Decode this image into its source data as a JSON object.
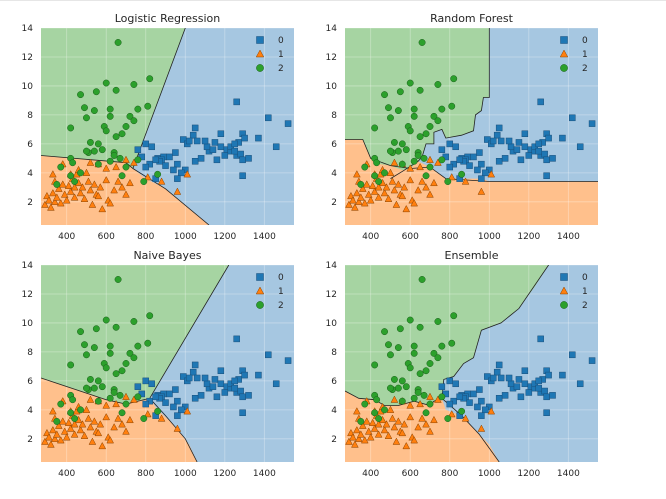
{
  "colors": {
    "class0": "#1f77b4",
    "class1": "#ff7f0e",
    "class2": "#2ca02c",
    "region0": "#a6c7e1",
    "region1": "#ffc08c",
    "region2": "#a6d4a2"
  },
  "chart_data": [
    {
      "type": "scatter",
      "title": "Logistic Regression",
      "xlim": [
        270,
        1550
      ],
      "ylim": [
        0.4,
        14
      ],
      "xticks": [
        400,
        600,
        800,
        1000,
        1200,
        1400
      ],
      "yticks": [
        2,
        4,
        6,
        8,
        10,
        12,
        14
      ],
      "legend": {
        "entries": [
          "0",
          "1",
          "2"
        ],
        "placement": "top-right"
      }
    },
    {
      "type": "scatter",
      "title": "Random Forest",
      "xlim": [
        270,
        1550
      ],
      "ylim": [
        0.4,
        14
      ],
      "xticks": [
        400,
        600,
        800,
        1000,
        1200,
        1400
      ],
      "yticks": [
        2,
        4,
        6,
        8,
        10,
        12,
        14
      ],
      "legend": {
        "entries": [
          "0",
          "1",
          "2"
        ],
        "placement": "top-right"
      }
    },
    {
      "type": "scatter",
      "title": "Naive Bayes",
      "xlim": [
        270,
        1550
      ],
      "ylim": [
        0.4,
        14
      ],
      "xticks": [
        400,
        600,
        800,
        1000,
        1200,
        1400
      ],
      "yticks": [
        2,
        4,
        6,
        8,
        10,
        12,
        14
      ],
      "legend": {
        "entries": [
          "0",
          "1",
          "2"
        ],
        "placement": "top-right"
      }
    },
    {
      "type": "scatter",
      "title": "Ensemble",
      "xlim": [
        270,
        1550
      ],
      "ylim": [
        0.4,
        14
      ],
      "xticks": [
        400,
        600,
        800,
        1000,
        1200,
        1400
      ],
      "yticks": [
        2,
        4,
        6,
        8,
        10,
        12,
        14
      ],
      "legend": {
        "entries": [
          "0",
          "1",
          "2"
        ],
        "placement": "top-right"
      }
    }
  ],
  "points": {
    "class0": [
      [
        760,
        5.6
      ],
      [
        800,
        6.0
      ],
      [
        830,
        5.8
      ],
      [
        860,
        5.0
      ],
      [
        890,
        5.1
      ],
      [
        920,
        5.1
      ],
      [
        950,
        5.4
      ],
      [
        960,
        4.6
      ],
      [
        990,
        6.3
      ],
      [
        1010,
        6.0
      ],
      [
        1040,
        6.6
      ],
      [
        1050,
        4.8
      ],
      [
        1080,
        5.0
      ],
      [
        1120,
        5.5
      ],
      [
        1150,
        6.1
      ],
      [
        1180,
        5.8
      ],
      [
        1210,
        5.6
      ],
      [
        1230,
        5.5
      ],
      [
        1260,
        5.2
      ],
      [
        1270,
        6.1
      ],
      [
        1280,
        5.3
      ],
      [
        1290,
        6.7
      ],
      [
        1290,
        4.9
      ],
      [
        1290,
        3.8
      ],
      [
        1260,
        8.9
      ],
      [
        1230,
        5.8
      ],
      [
        1160,
        4.9
      ],
      [
        1110,
        5.8
      ],
      [
        1060,
        6.2
      ],
      [
        1000,
        4.2
      ],
      [
        980,
        4.0
      ],
      [
        960,
        3.6
      ],
      [
        900,
        4.5
      ],
      [
        880,
        4.9
      ],
      [
        850,
        3.6
      ],
      [
        820,
        4.6
      ],
      [
        800,
        4.4
      ],
      [
        1370,
        6.4
      ],
      [
        1420,
        7.8
      ],
      [
        1460,
        5.8
      ],
      [
        1520,
        7.4
      ],
      [
        1180,
        6.7
      ],
      [
        1140,
        5.6
      ],
      [
        1300,
        6.4
      ],
      [
        1320,
        5.0
      ],
      [
        1250,
        5.5
      ],
      [
        1020,
        6.2
      ],
      [
        940,
        4.2
      ],
      [
        870,
        4.8
      ],
      [
        780,
        5.1
      ],
      [
        1100,
        6.2
      ],
      [
        1050,
        7.1
      ],
      [
        1250,
        6.0
      ],
      [
        1200,
        5.2
      ],
      [
        850,
        4.9
      ]
    ],
    "class1": [
      [
        290,
        1.8
      ],
      [
        300,
        2.4
      ],
      [
        310,
        2.1
      ],
      [
        320,
        1.6
      ],
      [
        330,
        2.6
      ],
      [
        340,
        2.0
      ],
      [
        350,
        2.3
      ],
      [
        360,
        2.9
      ],
      [
        370,
        1.9
      ],
      [
        380,
        3.2
      ],
      [
        390,
        2.5
      ],
      [
        400,
        2.1
      ],
      [
        410,
        3.1
      ],
      [
        420,
        2.7
      ],
      [
        430,
        3.6
      ],
      [
        440,
        2.3
      ],
      [
        450,
        3.9
      ],
      [
        460,
        3.3
      ],
      [
        470,
        2.6
      ],
      [
        480,
        3.0
      ],
      [
        490,
        2.2
      ],
      [
        500,
        4.0
      ],
      [
        510,
        3.4
      ],
      [
        520,
        2.8
      ],
      [
        530,
        1.8
      ],
      [
        540,
        3.2
      ],
      [
        550,
        2.5
      ],
      [
        570,
        3.0
      ],
      [
        580,
        1.5
      ],
      [
        600,
        3.5
      ],
      [
        610,
        2.1
      ],
      [
        620,
        1.9
      ],
      [
        640,
        2.8
      ],
      [
        660,
        3.4
      ],
      [
        680,
        3.0
      ],
      [
        700,
        2.5
      ],
      [
        720,
        3.3
      ],
      [
        740,
        4.7
      ],
      [
        650,
        4.4
      ],
      [
        600,
        4.3
      ],
      [
        560,
        4.6
      ],
      [
        520,
        4.7
      ],
      [
        460,
        4.2
      ],
      [
        420,
        3.9
      ],
      [
        380,
        4.6
      ],
      [
        340,
        3.4
      ],
      [
        330,
        3.9
      ],
      [
        440,
        3.0
      ],
      [
        560,
        2.4
      ],
      [
        700,
        4.9
      ],
      [
        880,
        3.4
      ],
      [
        960,
        2.7
      ],
      [
        1010,
        3.9
      ],
      [
        810,
        3.7
      ]
    ],
    "class2": [
      [
        350,
        3.2
      ],
      [
        370,
        4.4
      ],
      [
        420,
        5.0
      ],
      [
        420,
        3.8
      ],
      [
        430,
        4.7
      ],
      [
        440,
        3.4
      ],
      [
        420,
        7.1
      ],
      [
        470,
        9.4
      ],
      [
        490,
        8.5
      ],
      [
        500,
        7.8
      ],
      [
        510,
        5.4
      ],
      [
        520,
        6.1
      ],
      [
        540,
        8.3
      ],
      [
        550,
        9.6
      ],
      [
        560,
        4.6
      ],
      [
        580,
        5.6
      ],
      [
        590,
        7.2
      ],
      [
        600,
        10.2
      ],
      [
        600,
        6.9
      ],
      [
        620,
        7.9
      ],
      [
        620,
        8.4
      ],
      [
        640,
        5.4
      ],
      [
        640,
        5.2
      ],
      [
        650,
        6.5
      ],
      [
        660,
        13.0
      ],
      [
        670,
        5.0
      ],
      [
        680,
        3.8
      ],
      [
        700,
        7.2
      ],
      [
        700,
        4.4
      ],
      [
        720,
        7.9
      ],
      [
        740,
        7.6
      ],
      [
        760,
        8.4
      ],
      [
        760,
        4.9
      ],
      [
        790,
        3.4
      ],
      [
        810,
        8.6
      ],
      [
        650,
        9.7
      ],
      [
        540,
        5.5
      ],
      [
        470,
        4.0
      ],
      [
        740,
        10.1
      ],
      [
        860,
        3.9
      ],
      [
        680,
        6.7
      ],
      [
        560,
        6.0
      ],
      [
        500,
        5.5
      ],
      [
        820,
        10.5
      ],
      [
        620,
        4.8
      ]
    ]
  }
}
